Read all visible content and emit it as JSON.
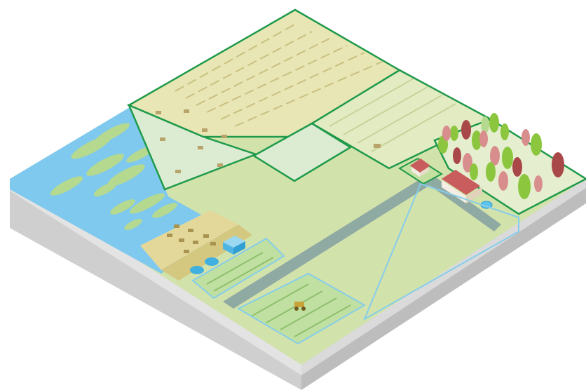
{
  "scene": {
    "description_visible_text": ""
  },
  "colors": {
    "background": "#ffffff",
    "base_top_side": "#d9d9d9",
    "base_left_side": "#c8c8c8",
    "base_right_side": "#bdbdbd",
    "water": "#7fc9ee",
    "water_reed": "#b5d98e",
    "wheat_field": "#e9e6b6",
    "wheat_stroke": "#c9c081",
    "pasture": "#dcecd3",
    "light_meadow": "#d4e3b0",
    "crop_green": "#bfe0a0",
    "road": "#8fa9a3",
    "field_outline": "#1f9a4a",
    "plot_outline": "#86cdea",
    "farmhouse_roof": "#c95c5c",
    "farmhouse_wall": "#f4eee4",
    "tree_green": "#8cc63f",
    "tree_pink": "#d98e8e",
    "tree_red": "#a94848",
    "animal": "#b8a46a",
    "tank": "#3fb0e0",
    "shed": "#5ec3ec",
    "tractor": "#c9a23a"
  },
  "icons": [
    "farmhouse-icon",
    "barn-icon",
    "tractor-icon",
    "tree-icon",
    "sheep-icon",
    "cow-icon",
    "water-tank-icon",
    "shed-icon"
  ]
}
